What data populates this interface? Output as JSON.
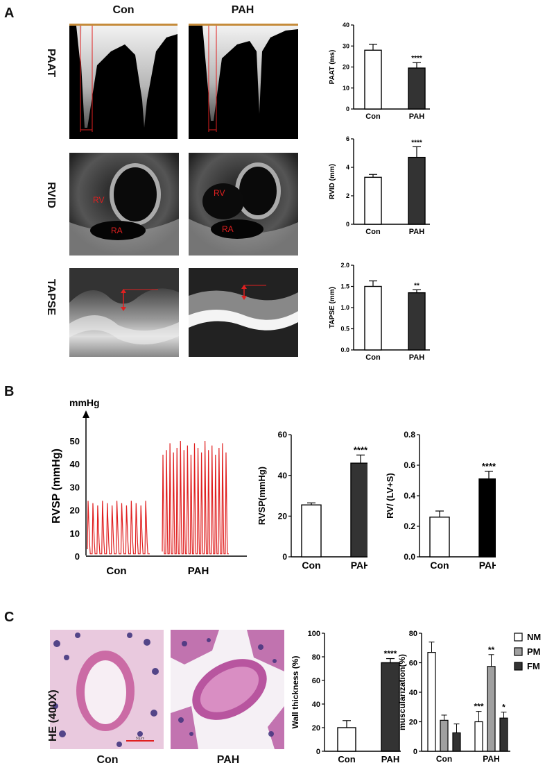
{
  "panels": {
    "a": "A",
    "b": "B",
    "c": "C"
  },
  "groups": {
    "con": "Con",
    "pah": "PAH"
  },
  "echo_rows": {
    "paat": "PAAT",
    "rvid": "RVID",
    "tapse": "TAPSE"
  },
  "echo_labels": {
    "rv": "RV",
    "ra": "RA"
  },
  "trace": {
    "unit": "mmHg",
    "ylabel": "RVSP (mmHg)",
    "yticks": [
      "0",
      "10",
      "20",
      "30",
      "40",
      "50"
    ],
    "con_peak": 24,
    "pah_peak": 46
  },
  "histology": {
    "label": "HE (400X)",
    "scale_text": "50μm"
  },
  "colors": {
    "trace": "#e02020",
    "dark_bar": "#333333",
    "black_bar": "#000000",
    "grey_bar": "#a0a0a0"
  },
  "chart_data": [
    {
      "id": "paat",
      "type": "bar",
      "categories": [
        "Con",
        "PAH"
      ],
      "values": [
        28,
        19.5
      ],
      "errors": [
        2.8,
        2.6
      ],
      "ylabel": "PAAT (ms)",
      "ylim": [
        0,
        40
      ],
      "yticks": [
        "0",
        "10",
        "20",
        "30",
        "40"
      ],
      "significance": [
        "",
        "****"
      ]
    },
    {
      "id": "rvid",
      "type": "bar",
      "categories": [
        "Con",
        "PAH"
      ],
      "values": [
        3.3,
        4.7
      ],
      "errors": [
        0.2,
        0.75
      ],
      "ylabel": "RVID (mm)",
      "ylim": [
        0,
        6
      ],
      "yticks": [
        "0",
        "2",
        "4",
        "6"
      ],
      "significance": [
        "",
        "****"
      ]
    },
    {
      "id": "tapse",
      "type": "bar",
      "categories": [
        "Con",
        "PAH"
      ],
      "values": [
        1.5,
        1.35
      ],
      "errors": [
        0.13,
        0.07
      ],
      "ylabel": "TAPSE (mm)",
      "ylim": [
        0,
        2
      ],
      "yticks": [
        "0.0",
        "0.5",
        "1.0",
        "1.5",
        "2.0"
      ],
      "significance": [
        "",
        "**"
      ]
    },
    {
      "id": "rvsp",
      "type": "bar",
      "categories": [
        "Con",
        "PAH"
      ],
      "values": [
        25.5,
        46
      ],
      "errors": [
        1,
        4
      ],
      "ylabel": "RVSP(mmHg)",
      "ylim": [
        0,
        60
      ],
      "yticks": [
        "0",
        "20",
        "40",
        "60"
      ],
      "significance": [
        "",
        "****"
      ]
    },
    {
      "id": "rvratio",
      "type": "bar",
      "categories": [
        "Con",
        "PAH"
      ],
      "values": [
        0.26,
        0.51
      ],
      "errors": [
        0.04,
        0.05
      ],
      "ylabel": "RV/ (LV+S)",
      "ylim": [
        0,
        0.8
      ],
      "yticks": [
        "0.0",
        "0.2",
        "0.4",
        "0.6",
        "0.8"
      ],
      "significance": [
        "",
        "****"
      ]
    },
    {
      "id": "wall",
      "type": "bar",
      "categories": [
        "Con",
        "PAH"
      ],
      "values": [
        20,
        75
      ],
      "errors": [
        6,
        3.5
      ],
      "ylabel": "Wall thickness (%)",
      "ylim": [
        0,
        100
      ],
      "yticks": [
        "0",
        "20",
        "40",
        "60",
        "80",
        "100"
      ],
      "significance": [
        "",
        "****"
      ]
    },
    {
      "id": "musc",
      "type": "bar",
      "categories": [
        "Con",
        "PAH"
      ],
      "ylabel": "muscularization(%)",
      "ylim": [
        0,
        80
      ],
      "yticks": [
        "0",
        "20",
        "40",
        "60",
        "80"
      ],
      "series": [
        {
          "name": "NM",
          "values": [
            67,
            20
          ],
          "errors": [
            7,
            7
          ],
          "significance": [
            "",
            "***"
          ]
        },
        {
          "name": "PM",
          "values": [
            21,
            57.5
          ],
          "errors": [
            3.5,
            8
          ],
          "significance": [
            "",
            "**"
          ]
        },
        {
          "name": "FM",
          "values": [
            12.5,
            22.5
          ],
          "errors": [
            6,
            4
          ],
          "significance": [
            "",
            "*"
          ]
        }
      ]
    }
  ]
}
